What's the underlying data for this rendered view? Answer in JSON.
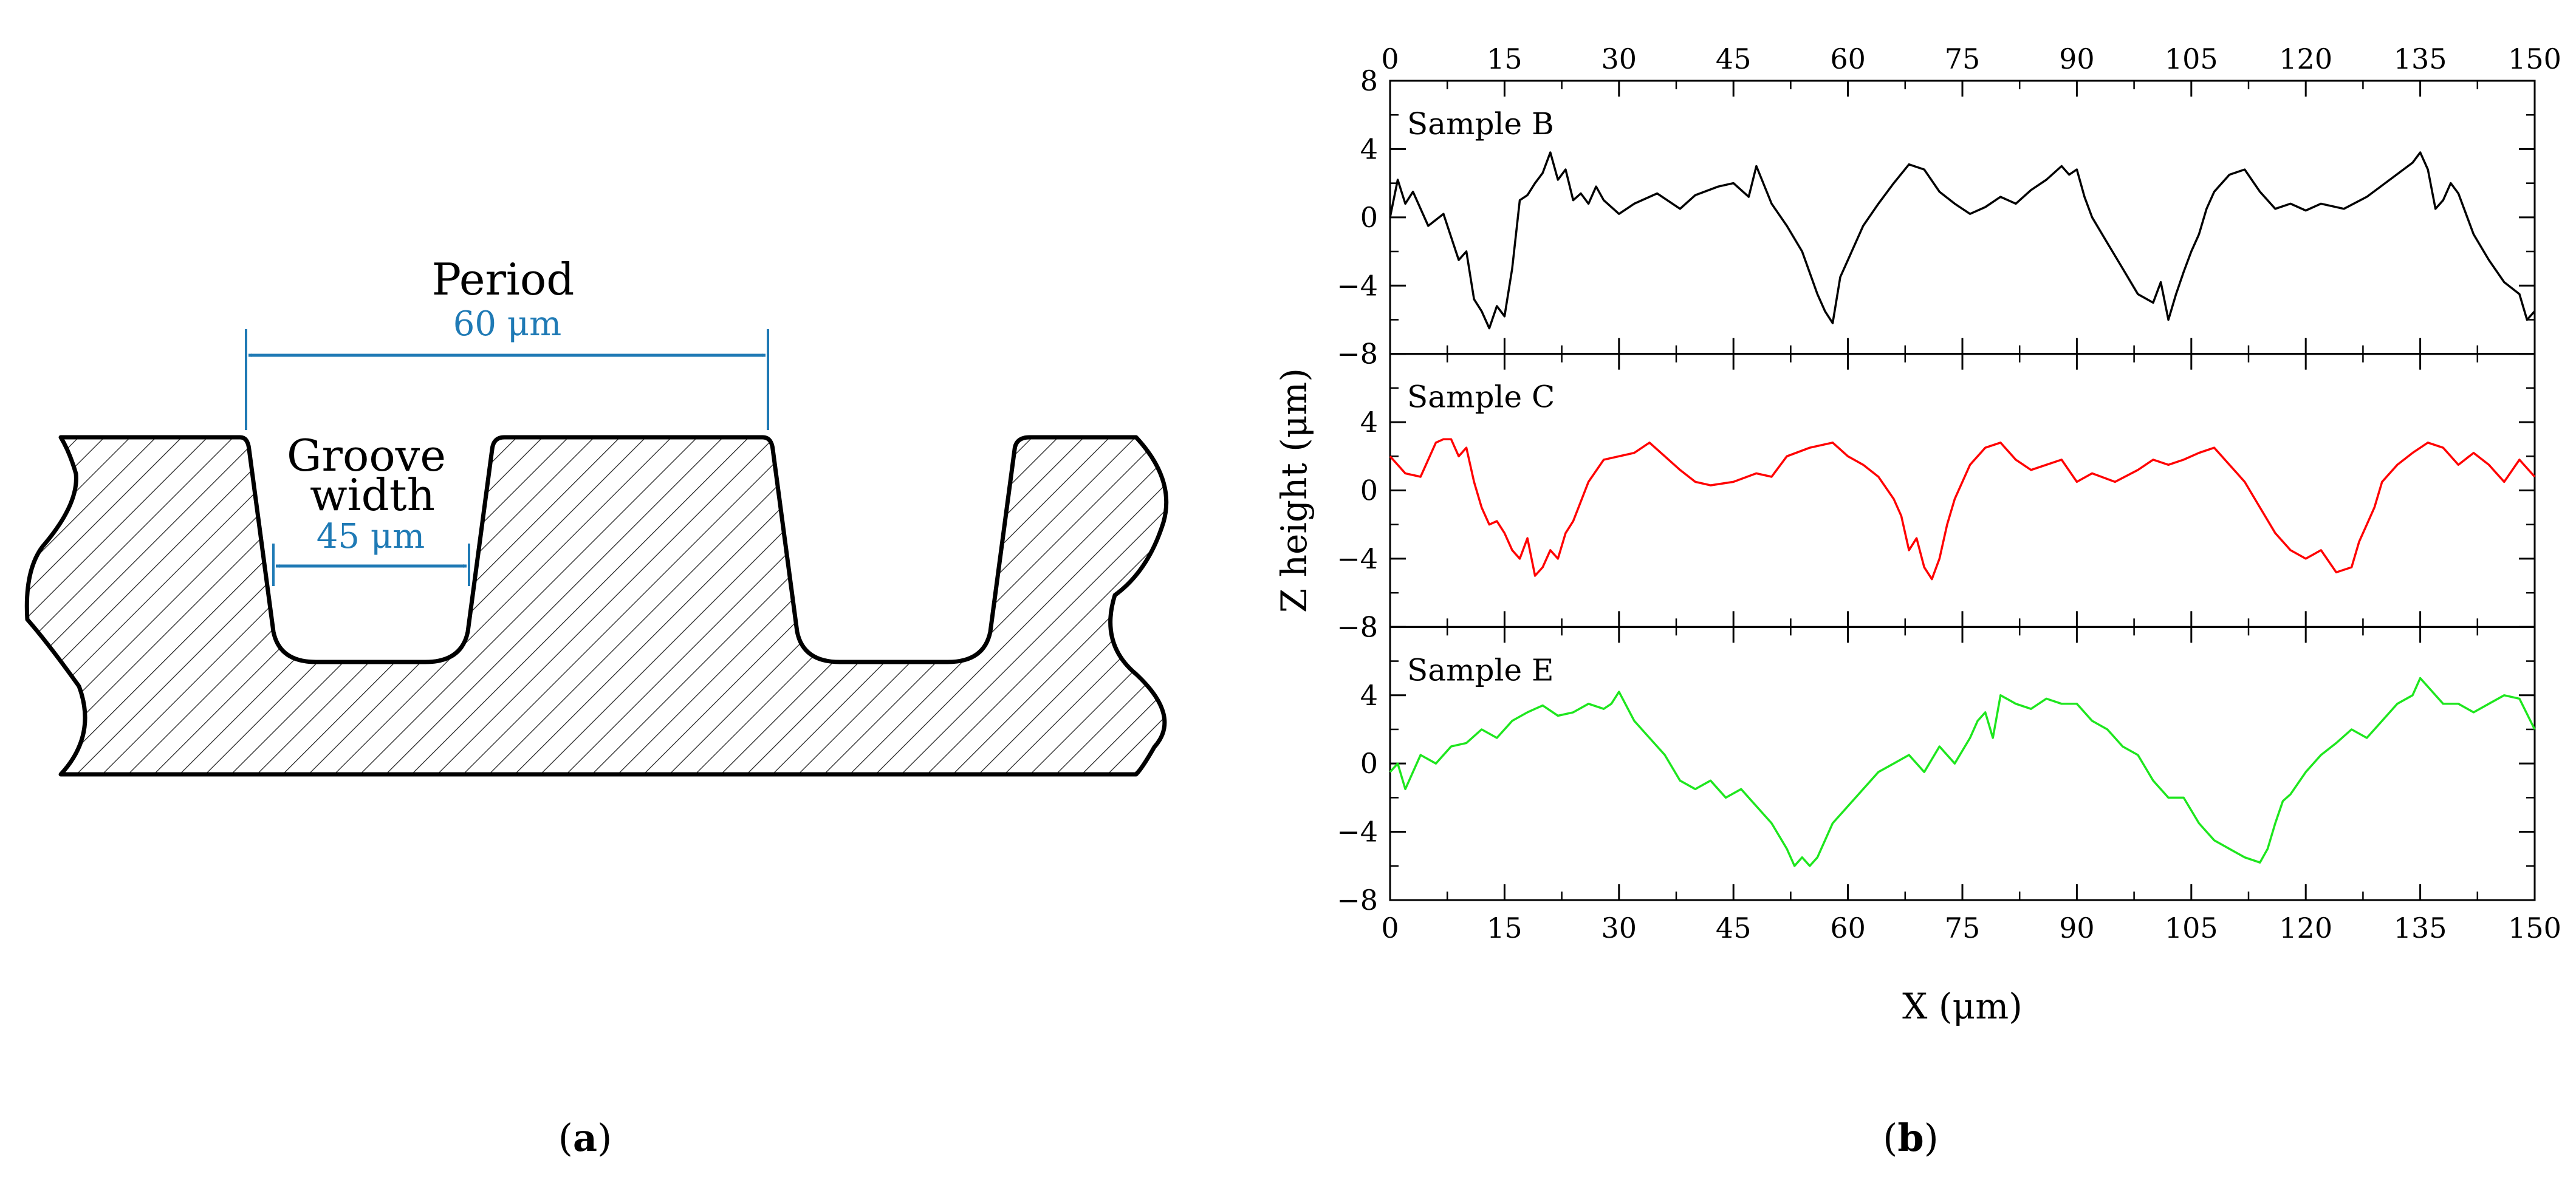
{
  "panel_a": {
    "period_label": "Period",
    "period_value": "60 μm",
    "groove_label_line1": "Groove",
    "groove_label_line2": "width",
    "groove_value": "45 μm",
    "caption_open": "(",
    "caption_letter": "a",
    "caption_close": ")",
    "accent_color": "#1f7ab5"
  },
  "panel_b": {
    "caption_open": "(",
    "caption_letter": "b",
    "caption_close": ")"
  },
  "chart_data": {
    "type": "line",
    "xlabel": "X (μm)",
    "ylabel": "Z height (μm)",
    "xlim": [
      0,
      150
    ],
    "x_ticks": [
      0,
      15,
      30,
      45,
      60,
      75,
      90,
      105,
      120,
      135,
      150
    ],
    "ylim": [
      -8,
      8
    ],
    "y_ticks": [
      -8,
      -4,
      0,
      4,
      8
    ],
    "y_tick_labels": [
      "−8",
      "−4",
      "0",
      "4",
      "8"
    ],
    "grid": false,
    "panels": [
      {
        "name": "Sample B",
        "color": "#000000",
        "x": [
          0,
          1,
          2,
          3,
          5,
          7,
          9,
          10,
          11,
          12,
          13,
          14,
          15,
          16,
          17,
          18,
          19,
          20,
          21,
          22,
          23,
          24,
          25,
          26,
          27,
          28,
          30,
          32,
          35,
          38,
          40,
          43,
          45,
          47,
          48,
          50,
          52,
          54,
          56,
          57,
          58,
          59,
          60,
          62,
          64,
          66,
          68,
          70,
          72,
          74,
          76,
          78,
          80,
          82,
          84,
          86,
          88,
          89,
          90,
          91,
          92,
          94,
          96,
          98,
          100,
          101,
          102,
          103,
          104,
          105,
          106,
          107,
          108,
          110,
          112,
          114,
          116,
          118,
          120,
          122,
          125,
          128,
          131,
          134,
          135,
          136,
          137,
          138,
          139,
          140,
          142,
          144,
          146,
          148,
          149,
          150
        ],
        "y": [
          0,
          2.2,
          0.8,
          1.5,
          -0.5,
          0.2,
          -2.5,
          -2,
          -4.8,
          -5.5,
          -6.5,
          -5.2,
          -5.8,
          -3,
          1,
          1.3,
          2,
          2.6,
          3.8,
          2.2,
          2.8,
          1,
          1.4,
          0.8,
          1.8,
          1,
          0.2,
          0.8,
          1.4,
          0.5,
          1.3,
          1.8,
          2,
          1.2,
          3,
          0.8,
          -0.5,
          -2,
          -4.5,
          -5.5,
          -6.2,
          -3.5,
          -2.5,
          -0.5,
          0.8,
          2,
          3.1,
          2.8,
          1.5,
          0.8,
          0.2,
          0.6,
          1.2,
          0.8,
          1.6,
          2.2,
          3,
          2.5,
          2.8,
          1.2,
          0,
          -1.5,
          -3,
          -4.5,
          -5,
          -3.8,
          -6,
          -4.5,
          -3.2,
          -2,
          -1,
          0.5,
          1.5,
          2.5,
          2.8,
          1.5,
          0.5,
          0.8,
          0.4,
          0.8,
          0.5,
          1.2,
          2.2,
          3.2,
          3.8,
          2.8,
          0.5,
          1,
          2,
          1.4,
          -1,
          -2.5,
          -3.8,
          -4.5,
          -6,
          -5.5
        ]
      },
      {
        "name": "Sample C",
        "color": "#ff0000",
        "x": [
          0,
          2,
          4,
          6,
          7,
          8,
          9,
          10,
          11,
          12,
          13,
          14,
          15,
          16,
          17,
          18,
          19,
          20,
          21,
          22,
          23,
          24,
          26,
          28,
          30,
          32,
          34,
          36,
          38,
          40,
          42,
          45,
          48,
          50,
          52,
          55,
          58,
          60,
          62,
          64,
          66,
          67,
          68,
          69,
          70,
          71,
          72,
          73,
          74,
          76,
          78,
          80,
          82,
          84,
          86,
          88,
          90,
          92,
          95,
          98,
          100,
          102,
          104,
          106,
          108,
          110,
          112,
          114,
          116,
          118,
          120,
          122,
          124,
          126,
          127,
          128,
          129,
          130,
          132,
          134,
          136,
          138,
          140,
          142,
          144,
          146,
          148,
          150
        ],
        "y": [
          2,
          1,
          0.8,
          2.8,
          3,
          3,
          2,
          2.5,
          0.5,
          -1,
          -2,
          -1.8,
          -2.5,
          -3.5,
          -4,
          -2.8,
          -5,
          -4.5,
          -3.5,
          -4,
          -2.5,
          -1.8,
          0.5,
          1.8,
          2,
          2.2,
          2.8,
          2,
          1.2,
          0.5,
          0.3,
          0.5,
          1,
          0.8,
          2,
          2.5,
          2.8,
          2,
          1.5,
          0.8,
          -0.5,
          -1.5,
          -3.5,
          -2.8,
          -4.5,
          -5.2,
          -4,
          -2,
          -0.5,
          1.5,
          2.5,
          2.8,
          1.8,
          1.2,
          1.5,
          1.8,
          0.5,
          1,
          0.5,
          1.2,
          1.8,
          1.5,
          1.8,
          2.2,
          2.5,
          1.5,
          0.5,
          -1,
          -2.5,
          -3.5,
          -4,
          -3.5,
          -4.8,
          -4.5,
          -3,
          -2,
          -1,
          0.5,
          1.5,
          2.2,
          2.8,
          2.5,
          1.5,
          2.2,
          1.5,
          0.5,
          1.8,
          0.8
        ]
      },
      {
        "name": "Sample E",
        "color": "#1ee61e",
        "x": [
          0,
          1,
          2,
          4,
          6,
          8,
          10,
          12,
          14,
          16,
          18,
          19,
          20,
          22,
          24,
          26,
          28,
          29,
          30,
          32,
          34,
          36,
          38,
          40,
          42,
          44,
          46,
          48,
          50,
          52,
          53,
          54,
          55,
          56,
          58,
          60,
          62,
          64,
          66,
          68,
          70,
          72,
          74,
          76,
          77,
          78,
          79,
          80,
          82,
          84,
          86,
          88,
          90,
          92,
          94,
          96,
          98,
          100,
          102,
          104,
          106,
          108,
          110,
          112,
          114,
          115,
          116,
          117,
          118,
          120,
          122,
          124,
          126,
          128,
          130,
          132,
          134,
          135,
          136,
          138,
          140,
          142,
          144,
          146,
          148,
          150
        ],
        "y": [
          -0.5,
          0,
          -1.5,
          0.5,
          0,
          1,
          1.2,
          2,
          1.5,
          2.5,
          3,
          3.2,
          3.4,
          2.8,
          3,
          3.5,
          3.2,
          3.5,
          4.2,
          2.5,
          1.5,
          0.5,
          -1,
          -1.5,
          -1,
          -2,
          -1.5,
          -2.5,
          -3.5,
          -5,
          -6,
          -5.5,
          -6,
          -5.5,
          -3.5,
          -2.5,
          -1.5,
          -0.5,
          0,
          0.5,
          -0.5,
          1,
          0,
          1.5,
          2.5,
          3,
          1.5,
          4,
          3.5,
          3.2,
          3.8,
          3.5,
          3.5,
          2.5,
          2,
          1,
          0.5,
          -1,
          -2,
          -2,
          -3.5,
          -4.5,
          -5,
          -5.5,
          -5.8,
          -5,
          -3.5,
          -2.2,
          -1.8,
          -0.5,
          0.5,
          1.2,
          2,
          1.5,
          2.5,
          3.5,
          4,
          5,
          4.5,
          3.5,
          3.5,
          3,
          3.5,
          4,
          3.8,
          2
        ]
      }
    ]
  }
}
